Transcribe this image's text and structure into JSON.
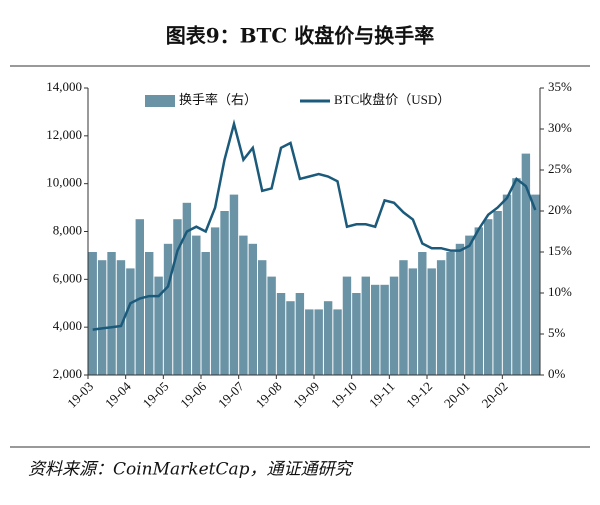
{
  "chart_data": {
    "type": "bar-line",
    "title": "图表9：BTC 收盘价与换手率",
    "source": "资料来源：CoinMarketCap，通证通研究",
    "categories": [
      "19-03",
      null,
      null,
      null,
      "19-04",
      null,
      null,
      null,
      "19-05",
      null,
      null,
      null,
      "19-06",
      null,
      null,
      null,
      "19-07",
      null,
      null,
      null,
      "19-08",
      null,
      null,
      null,
      "19-09",
      null,
      null,
      null,
      "19-10",
      null,
      null,
      null,
      "19-11",
      null,
      null,
      null,
      "19-12",
      null,
      null,
      null,
      "20-01",
      null,
      null,
      null,
      "20-02",
      null,
      null,
      null
    ],
    "series": [
      {
        "name": "换手率（右）",
        "color": "#6a93a6",
        "axis": "y2",
        "kind": "bar",
        "values": [
          15,
          14,
          15,
          14,
          13,
          19,
          15,
          12,
          16,
          19,
          21,
          17,
          15,
          18,
          20,
          22,
          17,
          16,
          14,
          12,
          10,
          9,
          10,
          8,
          8,
          9,
          8,
          12,
          10,
          12,
          11,
          11,
          12,
          14,
          13,
          15,
          13,
          14,
          15,
          16,
          17,
          18,
          19,
          20,
          22,
          24,
          27,
          22
        ]
      },
      {
        "name": "BTC收盘价（USD）",
        "color": "#1b5a7a",
        "axis": "y",
        "kind": "line",
        "values": [
          3900,
          3950,
          4000,
          4050,
          5000,
          5200,
          5300,
          5300,
          5700,
          7200,
          8000,
          8200,
          8000,
          9000,
          11000,
          12500,
          11000,
          11500,
          9700,
          9800,
          11500,
          11700,
          10200,
          10300,
          10400,
          10300,
          10100,
          8200,
          8300,
          8300,
          8200,
          9300,
          9200,
          8800,
          8500,
          7500,
          7300,
          7300,
          7200,
          7200,
          7400,
          8100,
          8700,
          9000,
          9400,
          10200,
          9900,
          8900
        ]
      }
    ],
    "ylim": [
      2000,
      14000
    ],
    "yticks": [
      {
        "value": 2000,
        "label": "2,000"
      },
      {
        "value": 4000,
        "label": "4,000"
      },
      {
        "value": 6000,
        "label": "6,000"
      },
      {
        "value": 8000,
        "label": "8,000"
      },
      {
        "value": 10000,
        "label": "10,000"
      },
      {
        "value": 12000,
        "label": "12,000"
      },
      {
        "value": 14000,
        "label": "14,000"
      }
    ],
    "y2lim": [
      0,
      35
    ],
    "y2ticks": [
      {
        "value": 0,
        "label": "0%"
      },
      {
        "value": 5,
        "label": "5%"
      },
      {
        "value": 10,
        "label": "10%"
      },
      {
        "value": 15,
        "label": "15%"
      },
      {
        "value": 20,
        "label": "20%"
      },
      {
        "value": 25,
        "label": "25%"
      },
      {
        "value": 30,
        "label": "30%"
      },
      {
        "value": 35,
        "label": "35%"
      }
    ]
  }
}
